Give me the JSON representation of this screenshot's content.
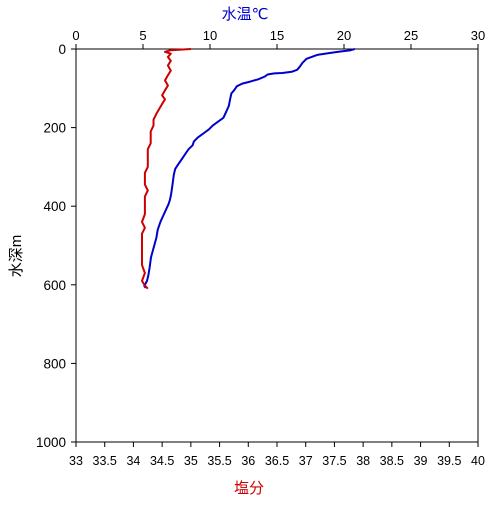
{
  "chart_data": {
    "type": "line",
    "title": "",
    "top_axis": {
      "label": "水温℃",
      "label_color": "#0000cc",
      "range": [
        0,
        30
      ],
      "ticks": [
        0,
        5,
        10,
        15,
        20,
        25,
        30
      ],
      "tick_labels": [
        "0",
        "5",
        "10",
        "15",
        "20",
        "25",
        "30"
      ]
    },
    "bottom_axis": {
      "label": "塩分",
      "label_color": "#cc0000",
      "range": [
        33,
        40
      ],
      "ticks": [
        33,
        33.5,
        34,
        34.5,
        35,
        35.5,
        36,
        36.5,
        37,
        37.5,
        38,
        38.5,
        39,
        39.5,
        40
      ],
      "tick_labels": [
        "33",
        "33.5",
        "34",
        "34.5",
        "35",
        "35.5",
        "36",
        "36.5",
        "37",
        "37.5",
        "38",
        "38.5",
        "39",
        "39.5",
        "40"
      ]
    },
    "y_axis": {
      "label": "水深m",
      "range": [
        0,
        1000
      ],
      "inverted": true,
      "ticks": [
        0,
        200,
        400,
        600,
        800,
        1000
      ],
      "tick_labels": [
        "0",
        "200",
        "400",
        "600",
        "800",
        "1000"
      ]
    },
    "grid": false,
    "series": [
      {
        "axis": "top",
        "color": "#0000cc",
        "points": [
          [
            20.8,
            0
          ],
          [
            20.5,
            3
          ],
          [
            19.6,
            7
          ],
          [
            19.0,
            10
          ],
          [
            18.0,
            15
          ],
          [
            17.2,
            25
          ],
          [
            16.9,
            35
          ],
          [
            16.7,
            45
          ],
          [
            16.5,
            53
          ],
          [
            16.1,
            58
          ],
          [
            15.4,
            61
          ],
          [
            14.8,
            62
          ],
          [
            14.3,
            65
          ],
          [
            14.1,
            70
          ],
          [
            13.6,
            77
          ],
          [
            13.0,
            83
          ],
          [
            12.4,
            88
          ],
          [
            12.0,
            95
          ],
          [
            11.8,
            105
          ],
          [
            11.6,
            113
          ],
          [
            11.5,
            128
          ],
          [
            11.4,
            145
          ],
          [
            11.2,
            160
          ],
          [
            11.0,
            175
          ],
          [
            10.6,
            185
          ],
          [
            10.2,
            195
          ],
          [
            9.9,
            205
          ],
          [
            9.5,
            215
          ],
          [
            9.1,
            225
          ],
          [
            8.8,
            235
          ],
          [
            8.7,
            245
          ],
          [
            8.4,
            255
          ],
          [
            8.2,
            265
          ],
          [
            8.0,
            275
          ],
          [
            7.8,
            285
          ],
          [
            7.6,
            295
          ],
          [
            7.4,
            305
          ],
          [
            7.3,
            320
          ],
          [
            7.2,
            345
          ],
          [
            7.1,
            370
          ],
          [
            7.0,
            385
          ],
          [
            6.9,
            395
          ],
          [
            6.7,
            410
          ],
          [
            6.5,
            425
          ],
          [
            6.3,
            440
          ],
          [
            6.1,
            460
          ],
          [
            6.0,
            480
          ],
          [
            5.8,
            505
          ],
          [
            5.6,
            530
          ],
          [
            5.5,
            555
          ],
          [
            5.4,
            575
          ],
          [
            5.3,
            590
          ],
          [
            5.1,
            603
          ],
          [
            5.2,
            608
          ]
        ]
      },
      {
        "axis": "bottom",
        "color": "#cc0000",
        "points": [
          [
            35.0,
            0
          ],
          [
            34.65,
            3
          ],
          [
            34.55,
            7
          ],
          [
            34.65,
            12
          ],
          [
            34.6,
            20
          ],
          [
            34.65,
            30
          ],
          [
            34.6,
            42
          ],
          [
            34.65,
            55
          ],
          [
            34.6,
            67
          ],
          [
            34.55,
            80
          ],
          [
            34.6,
            93
          ],
          [
            34.55,
            105
          ],
          [
            34.5,
            118
          ],
          [
            34.55,
            128
          ],
          [
            34.5,
            140
          ],
          [
            34.45,
            152
          ],
          [
            34.4,
            165
          ],
          [
            34.35,
            180
          ],
          [
            34.35,
            195
          ],
          [
            34.3,
            210
          ],
          [
            34.3,
            225
          ],
          [
            34.3,
            240
          ],
          [
            34.25,
            255
          ],
          [
            34.25,
            270
          ],
          [
            34.25,
            285
          ],
          [
            34.25,
            300
          ],
          [
            34.2,
            315
          ],
          [
            34.2,
            330
          ],
          [
            34.2,
            345
          ],
          [
            34.25,
            360
          ],
          [
            34.2,
            375
          ],
          [
            34.2,
            390
          ],
          [
            34.2,
            405
          ],
          [
            34.2,
            420
          ],
          [
            34.15,
            440
          ],
          [
            34.2,
            455
          ],
          [
            34.15,
            470
          ],
          [
            34.15,
            490
          ],
          [
            34.15,
            510
          ],
          [
            34.15,
            530
          ],
          [
            34.15,
            550
          ],
          [
            34.2,
            570
          ],
          [
            34.15,
            590
          ],
          [
            34.2,
            602
          ],
          [
            34.25,
            610
          ]
        ]
      }
    ]
  }
}
